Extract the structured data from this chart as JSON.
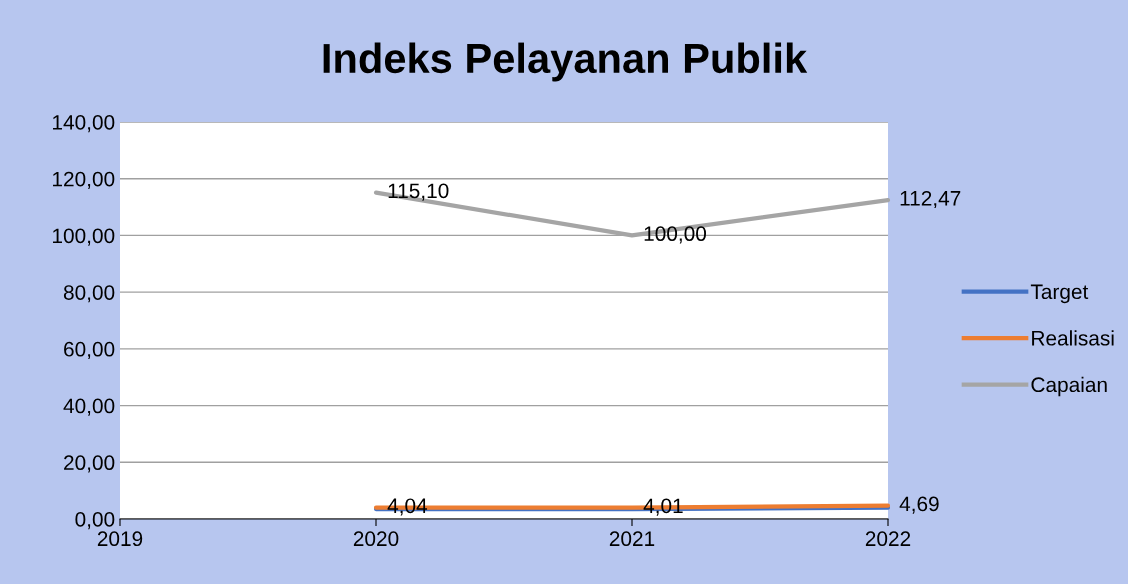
{
  "chart_data": {
    "type": "line",
    "title": "Indeks Pelayanan Publik",
    "categories": [
      "2019",
      "2020",
      "2021",
      "2022"
    ],
    "series": [
      {
        "name": "Target",
        "color": "#4472c4",
        "values": [
          null,
          3.5,
          3.5,
          4.0
        ]
      },
      {
        "name": "Realisasi",
        "color": "#ed7d31",
        "values": [
          null,
          4.04,
          4.01,
          4.69
        ],
        "value_labels": [
          null,
          "4,04",
          "4,01",
          "4,69"
        ]
      },
      {
        "name": "Capaian",
        "color": "#a5a5a5",
        "values": [
          null,
          115.1,
          100.0,
          112.47
        ],
        "value_labels": [
          null,
          "115,10",
          "100,00",
          "112,47"
        ]
      }
    ],
    "ylim": [
      0,
      140
    ],
    "yticks": [
      {
        "value": 0,
        "label": "0,00"
      },
      {
        "value": 20,
        "label": "20,00"
      },
      {
        "value": 40,
        "label": "40,00"
      },
      {
        "value": 60,
        "label": "60,00"
      },
      {
        "value": 80,
        "label": "80,00"
      },
      {
        "value": 100,
        "label": "100,00"
      },
      {
        "value": 120,
        "label": "120,00"
      },
      {
        "value": 140,
        "label": "140,00"
      }
    ],
    "grid": "y",
    "legend": "right",
    "marker": "none",
    "line_style": "solid"
  }
}
